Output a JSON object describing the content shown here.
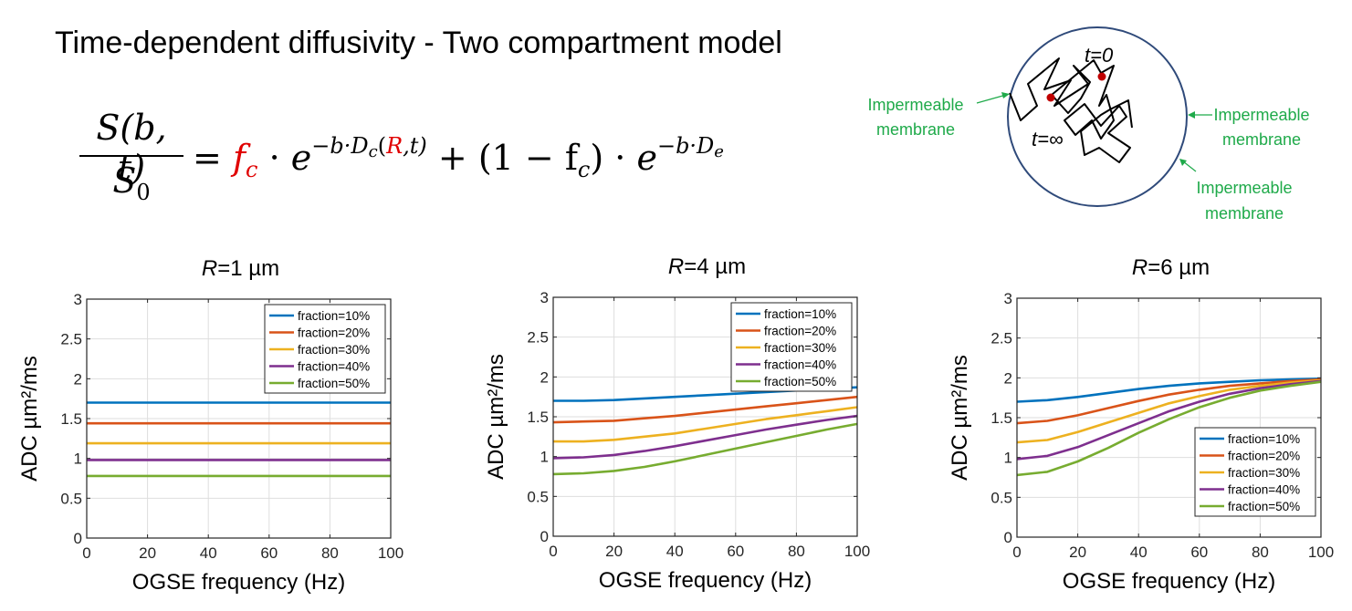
{
  "title": "Time-dependent diffusivity - Two compartment model",
  "formula": {
    "lhs_numerator": "S(b, t)",
    "lhs_denominator": "S",
    "lhs_denominator_sub": "0",
    "equals": "=",
    "fc": "f",
    "fc_sub": "c",
    "dot": "·",
    "e": "e",
    "exp1_prefix": "−b·D",
    "exp1_sub": "c",
    "exp1_open": "(",
    "exp1_R": "R",
    "exp1_close": ",t)",
    "plus": "+",
    "term2_open": "(1 − f",
    "term2_sub": "c",
    "term2_close": ")",
    "exp2_prefix": "−b·D",
    "exp2_sub": "e"
  },
  "diagram": {
    "label_t0": "t=0",
    "label_tinf": "t=∞",
    "membrane_left": [
      "Impermeable",
      "membrane"
    ],
    "membrane_right": [
      "Impermeable",
      "membrane"
    ],
    "membrane_bottom": [
      "Impermeable",
      "membrane"
    ]
  },
  "colors": {
    "membrane_text": "#1faa4a",
    "circle": "#2f4a7a",
    "dot": "#c00000",
    "series": [
      "#0072BD",
      "#D95319",
      "#EDB120",
      "#7E2F8E",
      "#77AC30"
    ]
  },
  "chart_data": [
    {
      "type": "line",
      "title": "=1 µm",
      "title_var": "R",
      "xlabel": "OGSE frequency (Hz)",
      "ylabel": "ADC µm²/ms",
      "xlim": [
        0,
        100
      ],
      "ylim": [
        0,
        3
      ],
      "xticks": [
        0,
        20,
        40,
        60,
        80,
        100
      ],
      "yticks": [
        0,
        0.5,
        1,
        1.5,
        2,
        2.5,
        3
      ],
      "grid": true,
      "legend_position": "top-right",
      "x": [
        0,
        10,
        20,
        30,
        40,
        50,
        60,
        70,
        80,
        90,
        100
      ],
      "series": [
        {
          "name": "fraction=10%",
          "values": [
            1.7,
            1.7,
            1.7,
            1.7,
            1.7,
            1.7,
            1.7,
            1.7,
            1.7,
            1.7,
            1.7
          ]
        },
        {
          "name": "fraction=20%",
          "values": [
            1.44,
            1.44,
            1.44,
            1.44,
            1.44,
            1.44,
            1.44,
            1.44,
            1.44,
            1.44,
            1.44
          ]
        },
        {
          "name": "fraction=30%",
          "values": [
            1.19,
            1.19,
            1.19,
            1.19,
            1.19,
            1.19,
            1.19,
            1.19,
            1.19,
            1.19,
            1.19
          ]
        },
        {
          "name": "fraction=40%",
          "values": [
            0.98,
            0.98,
            0.98,
            0.98,
            0.98,
            0.98,
            0.98,
            0.98,
            0.98,
            0.98,
            0.98
          ]
        },
        {
          "name": "fraction=50%",
          "values": [
            0.78,
            0.78,
            0.78,
            0.78,
            0.78,
            0.78,
            0.78,
            0.78,
            0.78,
            0.78,
            0.78
          ]
        }
      ]
    },
    {
      "type": "line",
      "title": "=4 µm",
      "title_var": "R",
      "xlabel": "OGSE frequency (Hz)",
      "ylabel": "ADC µm²/ms",
      "xlim": [
        0,
        100
      ],
      "ylim": [
        0,
        3
      ],
      "xticks": [
        0,
        20,
        40,
        60,
        80,
        100
      ],
      "yticks": [
        0,
        0.5,
        1,
        1.5,
        2,
        2.5,
        3
      ],
      "grid": true,
      "legend_position": "top-right",
      "x": [
        0,
        10,
        20,
        30,
        40,
        50,
        60,
        70,
        80,
        90,
        100
      ],
      "series": [
        {
          "name": "fraction=10%",
          "values": [
            1.7,
            1.7,
            1.71,
            1.73,
            1.75,
            1.77,
            1.79,
            1.81,
            1.83,
            1.85,
            1.87
          ]
        },
        {
          "name": "fraction=20%",
          "values": [
            1.43,
            1.44,
            1.45,
            1.48,
            1.51,
            1.55,
            1.59,
            1.63,
            1.67,
            1.71,
            1.75
          ]
        },
        {
          "name": "fraction=30%",
          "values": [
            1.19,
            1.19,
            1.21,
            1.25,
            1.29,
            1.35,
            1.41,
            1.47,
            1.52,
            1.57,
            1.62
          ]
        },
        {
          "name": "fraction=40%",
          "values": [
            0.98,
            0.99,
            1.02,
            1.07,
            1.13,
            1.2,
            1.27,
            1.34,
            1.4,
            1.46,
            1.51
          ]
        },
        {
          "name": "fraction=50%",
          "values": [
            0.78,
            0.79,
            0.82,
            0.87,
            0.94,
            1.02,
            1.1,
            1.18,
            1.26,
            1.34,
            1.41
          ]
        }
      ]
    },
    {
      "type": "line",
      "title": "=6 µm",
      "title_var": "R",
      "xlabel": "OGSE frequency (Hz)",
      "ylabel": "ADC µm²/ms",
      "xlim": [
        0,
        100
      ],
      "ylim": [
        0,
        3
      ],
      "xticks": [
        0,
        20,
        40,
        60,
        80,
        100
      ],
      "yticks": [
        0,
        0.5,
        1,
        1.5,
        2,
        2.5,
        3
      ],
      "grid": true,
      "legend_position": "right",
      "x": [
        0,
        10,
        20,
        30,
        40,
        50,
        60,
        70,
        80,
        90,
        100
      ],
      "series": [
        {
          "name": "fraction=10%",
          "values": [
            1.7,
            1.72,
            1.76,
            1.81,
            1.86,
            1.9,
            1.93,
            1.95,
            1.97,
            1.98,
            1.99
          ]
        },
        {
          "name": "fraction=20%",
          "values": [
            1.43,
            1.46,
            1.53,
            1.62,
            1.71,
            1.79,
            1.85,
            1.9,
            1.93,
            1.96,
            1.98
          ]
        },
        {
          "name": "fraction=30%",
          "values": [
            1.19,
            1.22,
            1.32,
            1.44,
            1.56,
            1.68,
            1.77,
            1.85,
            1.9,
            1.94,
            1.97
          ]
        },
        {
          "name": "fraction=40%",
          "values": [
            0.98,
            1.02,
            1.13,
            1.28,
            1.43,
            1.58,
            1.7,
            1.8,
            1.87,
            1.92,
            1.96
          ]
        },
        {
          "name": "fraction=50%",
          "values": [
            0.78,
            0.82,
            0.95,
            1.12,
            1.31,
            1.48,
            1.63,
            1.75,
            1.84,
            1.9,
            1.95
          ]
        }
      ]
    }
  ]
}
